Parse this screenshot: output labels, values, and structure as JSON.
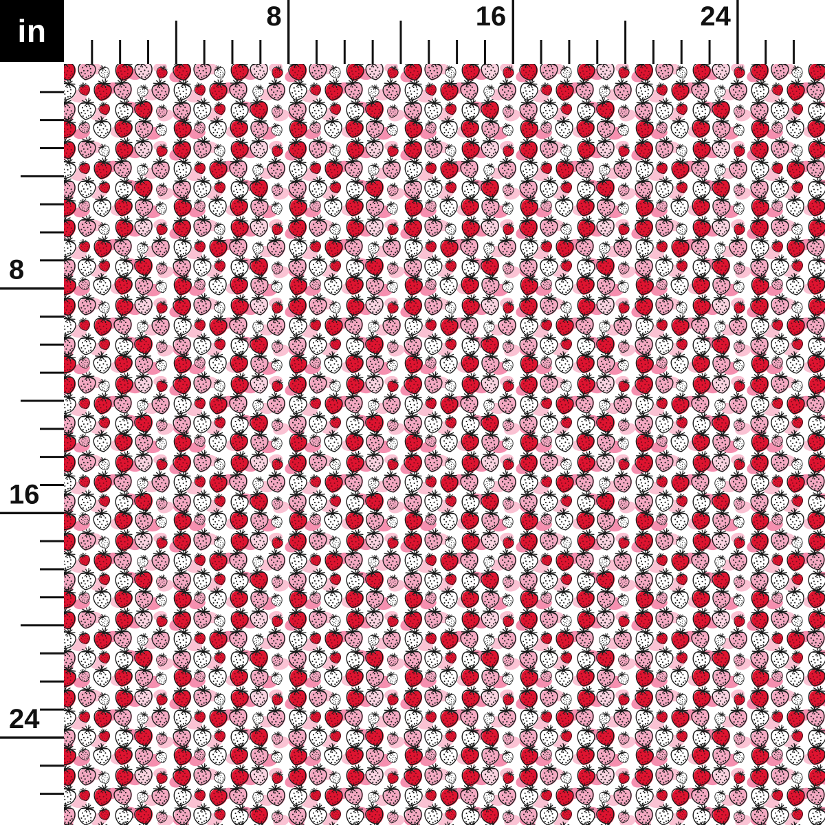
{
  "ruler": {
    "unit_label": "in",
    "horizontal_labels": [
      {
        "inch": 8,
        "text": "8"
      },
      {
        "inch": 16,
        "text": "16"
      },
      {
        "inch": 24,
        "text": "24"
      }
    ],
    "vertical_labels": [
      {
        "inch": 8,
        "text": "8"
      },
      {
        "inch": 16,
        "text": "16"
      },
      {
        "inch": 24,
        "text": "24"
      }
    ],
    "ink_color": "#111111",
    "unit_box_bg": "#000000",
    "unit_box_text_color": "#ffffff"
  },
  "pattern": {
    "motif": "hand-drawn strawberries, red and pink with dotted texture and pink blob shadows on white",
    "colors": {
      "background": "#ffffff",
      "outline": "#1a1a1a",
      "red": "#de1430",
      "red_dot": "#7d0a1c",
      "pink": "#f4a9c2",
      "pale": "#f9d3e0",
      "white": "#ffffff",
      "dot": "#1c1c1c",
      "blob_medium": "#f58faf",
      "blob_light": "#fac2d3"
    },
    "tile": {
      "w": 168,
      "h": 114
    },
    "blobs": [
      [
        8,
        26,
        13,
        9,
        -20,
        "m"
      ],
      [
        56,
        16,
        11,
        8,
        15,
        "l"
      ],
      [
        112,
        24,
        12,
        8,
        10,
        "m"
      ],
      [
        150,
        14,
        10,
        7,
        -12,
        "l"
      ],
      [
        30,
        56,
        13,
        9,
        12,
        "l"
      ],
      [
        80,
        44,
        11,
        8,
        -16,
        "m"
      ],
      [
        136,
        54,
        12,
        8,
        8,
        "l"
      ],
      [
        12,
        84,
        12,
        8,
        18,
        "m"
      ],
      [
        60,
        82,
        13,
        9,
        -10,
        "l"
      ],
      [
        108,
        72,
        11,
        8,
        14,
        "m"
      ],
      [
        158,
        84,
        12,
        8,
        -18,
        "l"
      ],
      [
        36,
        110,
        12,
        8,
        -14,
        "m"
      ],
      [
        88,
        108,
        11,
        8,
        10,
        "l"
      ],
      [
        140,
        110,
        13,
        9,
        -8,
        "m"
      ]
    ],
    "berries": [
      [
        14,
        20,
        -14,
        1,
        "red"
      ],
      [
        43,
        19,
        10,
        1,
        "pink"
      ],
      [
        69,
        22,
        -26,
        0.62,
        "white"
      ],
      [
        97,
        20,
        16,
        1,
        "red"
      ],
      [
        126,
        19,
        -8,
        1,
        "pale"
      ],
      [
        152,
        22,
        24,
        0.62,
        "red"
      ],
      [
        14,
        49,
        16,
        1,
        "white"
      ],
      [
        40,
        47,
        -20,
        0.62,
        "red"
      ],
      [
        66,
        49,
        12,
        1,
        "red"
      ],
      [
        96,
        48,
        -14,
        1,
        "pink"
      ],
      [
        124,
        50,
        20,
        0.62,
        "white"
      ],
      [
        151,
        49,
        -10,
        1,
        "pink"
      ],
      [
        14,
        77,
        -10,
        1,
        "pink"
      ],
      [
        43,
        77,
        8,
        1,
        "white"
      ],
      [
        69,
        75,
        -16,
        0.62,
        "red"
      ],
      [
        97,
        78,
        14,
        1,
        "white"
      ],
      [
        126,
        76,
        -18,
        1,
        "red"
      ],
      [
        152,
        79,
        12,
        0.62,
        "pink"
      ],
      [
        14,
        104,
        20,
        1,
        "red"
      ],
      [
        40,
        102,
        -22,
        0.62,
        "pink"
      ],
      [
        66,
        104,
        -8,
        1,
        "white"
      ],
      [
        96,
        103,
        15,
        1,
        "red"
      ],
      [
        126,
        104,
        8,
        1,
        "pink"
      ],
      [
        152,
        106,
        -20,
        0.62,
        "white"
      ]
    ]
  }
}
